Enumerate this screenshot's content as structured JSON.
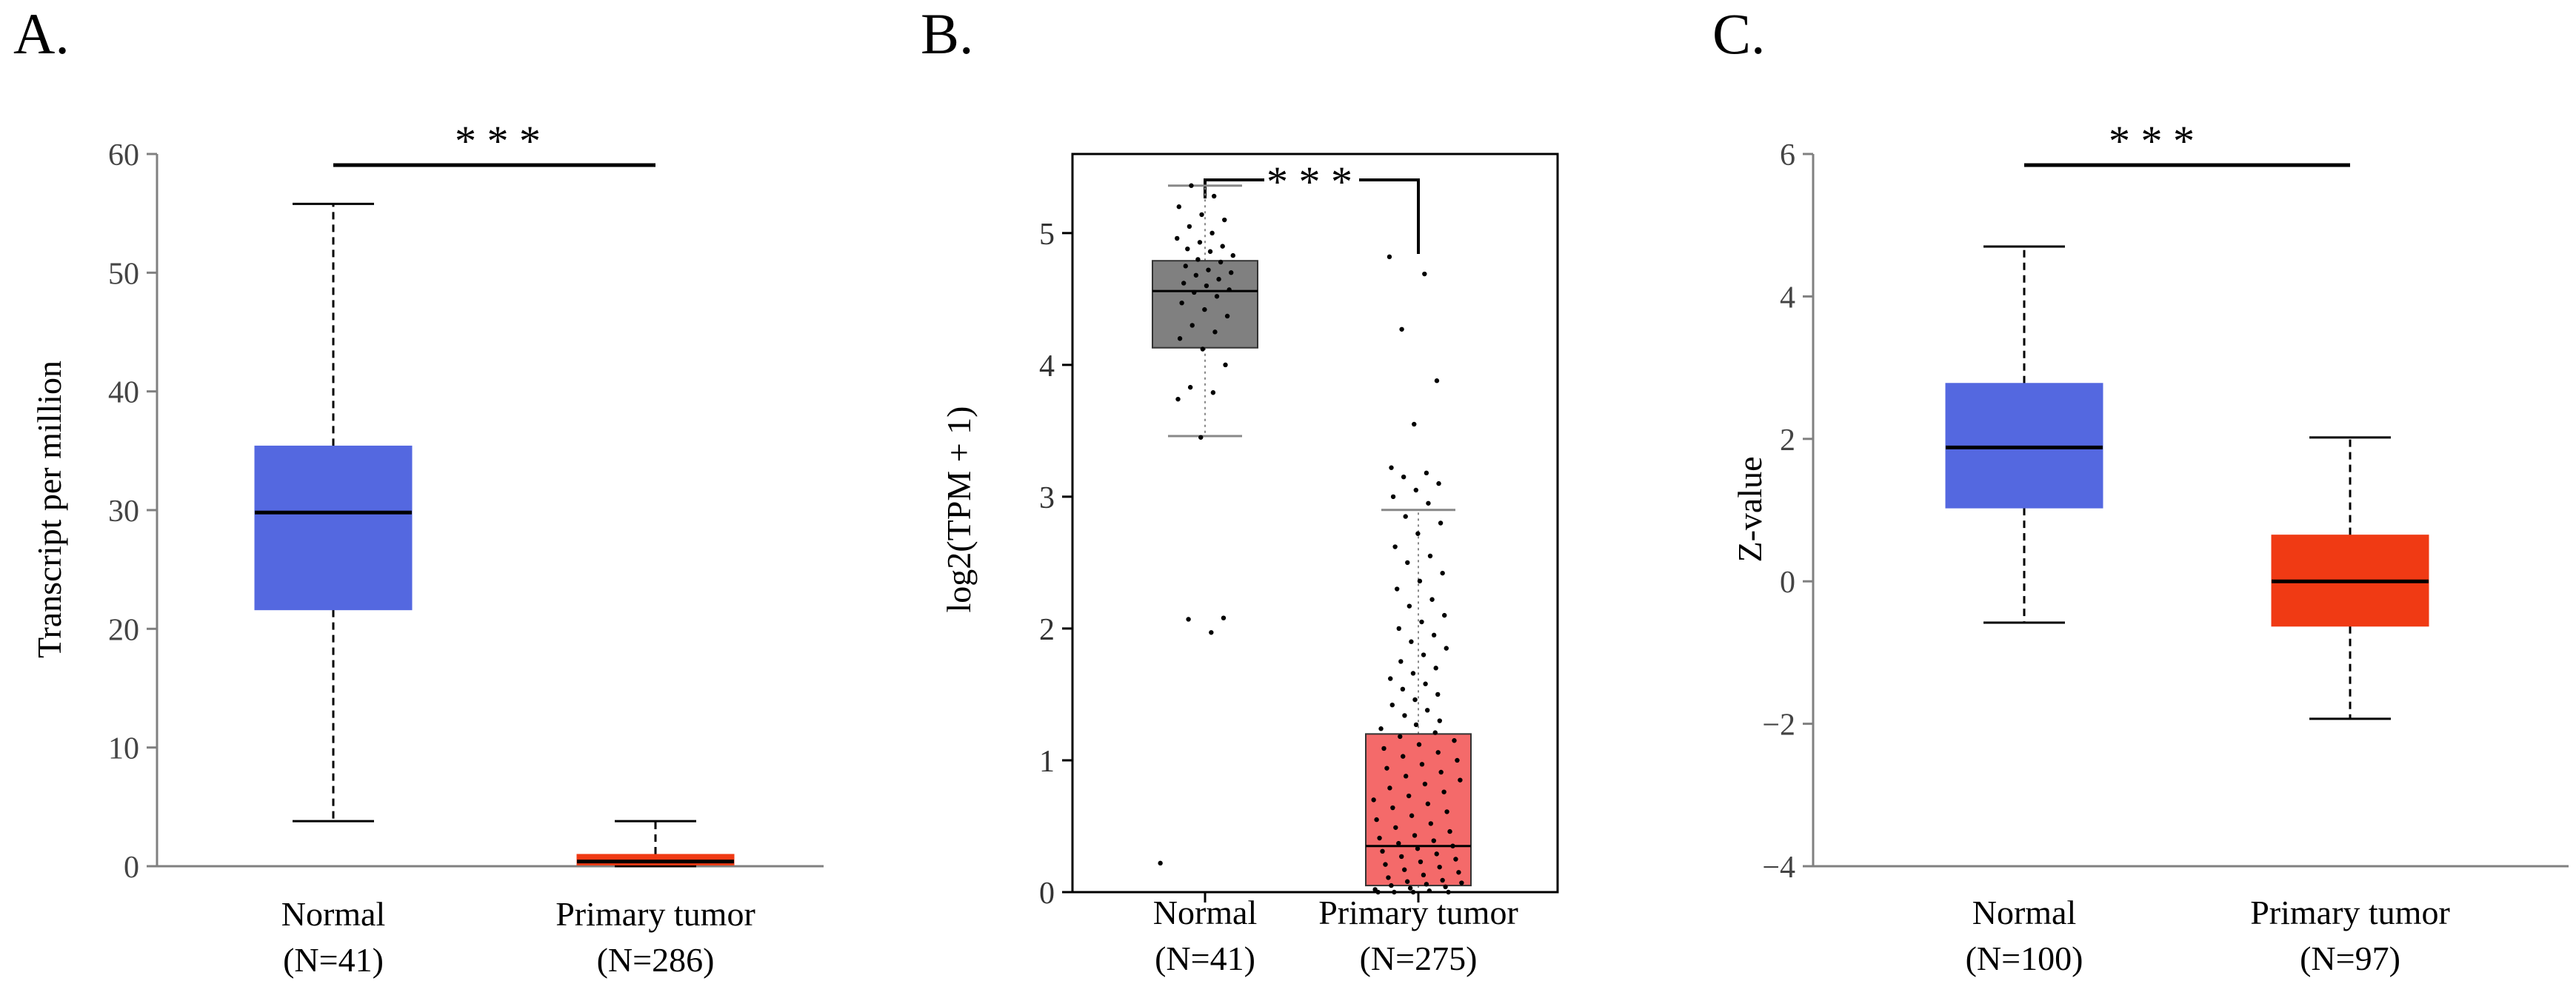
{
  "colors": {
    "normal_a": "#5468e0",
    "tumor_a": "#f03a14",
    "normal_b": "#808080",
    "tumor_b": "#f46a6a",
    "normal_c": "#5468e0",
    "tumor_c": "#f03a14",
    "axis_gray": "#808080",
    "ink": "#000000"
  },
  "chart_data": [
    {
      "panel_label": "A.",
      "type": "box",
      "ylabel": "Transcript per million",
      "ylim": [
        0,
        60
      ],
      "yticks": [
        "0",
        "10",
        "20",
        "30",
        "40",
        "50",
        "60"
      ],
      "significance": "* * *",
      "framed": false,
      "groups": [
        {
          "name": "Normal",
          "n_label": "(N=41)",
          "min": 3.8,
          "q1": 21.6,
          "median": 29.8,
          "q3": 35.4,
          "max": 55.8
        },
        {
          "name": "Primary tumor",
          "n_label": "(N=286)",
          "min": 0.0,
          "q1": 0.1,
          "median": 0.4,
          "q3": 1.0,
          "max": 3.8
        }
      ]
    },
    {
      "panel_label": "B.",
      "type": "box",
      "ylabel": "log2(TPM + 1)",
      "ylim": [
        0,
        5.6
      ],
      "yticks": [
        "0",
        "1",
        "2",
        "3",
        "4",
        "5"
      ],
      "significance": "* * *",
      "framed": true,
      "groups": [
        {
          "name": "Normal",
          "n_label": "(N=41)",
          "min": 3.46,
          "q1": 4.13,
          "median": 4.56,
          "q3": 4.79,
          "max": 5.36,
          "lower_cap": 0.0,
          "points": [
            0.22,
            1.97,
            2.07,
            2.08,
            3.45,
            3.74,
            3.79,
            3.83,
            4.0,
            4.12,
            4.2,
            4.25,
            4.3,
            4.37,
            4.42,
            4.47,
            4.52,
            4.55,
            4.57,
            4.6,
            4.62,
            4.65,
            4.68,
            4.7,
            4.72,
            4.75,
            4.78,
            4.8,
            4.83,
            4.86,
            4.88,
            4.9,
            4.93,
            4.96,
            5.0,
            5.05,
            5.1,
            5.14,
            5.2,
            5.28,
            5.36
          ]
        },
        {
          "name": "Primary tumor",
          "n_label": "(N=275)",
          "min": 0.0,
          "q1": 0.05,
          "median": 0.35,
          "q3": 1.2,
          "max": 2.9,
          "lower_cap": 0.0,
          "points": [
            4.82,
            4.69,
            4.27,
            3.88,
            3.55,
            3.22,
            3.18,
            3.15,
            3.1,
            3.05,
            3.0,
            2.95,
            2.85,
            2.8,
            2.72,
            2.62,
            2.55,
            2.5,
            2.42,
            2.36,
            2.3,
            2.22,
            2.17,
            2.1,
            2.05,
            2.0,
            1.95,
            1.9,
            1.85,
            1.8,
            1.75,
            1.7,
            1.66,
            1.62,
            1.58,
            1.54,
            1.5,
            1.46,
            1.42,
            1.38,
            1.34,
            1.3,
            1.27,
            1.24,
            1.21,
            1.18,
            1.15,
            1.12,
            1.09,
            1.06,
            1.03,
            1.0,
            0.97,
            0.94,
            0.91,
            0.88,
            0.85,
            0.82,
            0.79,
            0.76,
            0.73,
            0.7,
            0.67,
            0.64,
            0.61,
            0.58,
            0.55,
            0.52,
            0.49,
            0.46,
            0.43,
            0.41,
            0.39,
            0.37,
            0.35,
            0.33,
            0.31,
            0.29,
            0.27,
            0.25,
            0.23,
            0.21,
            0.19,
            0.17,
            0.15,
            0.13,
            0.11,
            0.09,
            0.08,
            0.07,
            0.06,
            0.05,
            0.04,
            0.03,
            0.02,
            0.01,
            0.0,
            0.0,
            0.0,
            0.0
          ]
        }
      ]
    },
    {
      "panel_label": "C.",
      "type": "box",
      "ylabel": "Z-value",
      "ylim": [
        -4,
        6
      ],
      "yticks": [
        "−4",
        "−2",
        "0",
        "2",
        "4",
        "6"
      ],
      "significance": "* * *",
      "framed": false,
      "groups": [
        {
          "name": "Normal",
          "n_label": "(N=100)",
          "min": -0.58,
          "q1": 1.03,
          "median": 1.88,
          "q3": 2.78,
          "max": 4.7
        },
        {
          "name": "Primary tumor",
          "n_label": "(N=97)",
          "min": -1.93,
          "q1": -0.63,
          "median": 0.0,
          "q3": 0.65,
          "max": 2.02
        }
      ]
    }
  ]
}
